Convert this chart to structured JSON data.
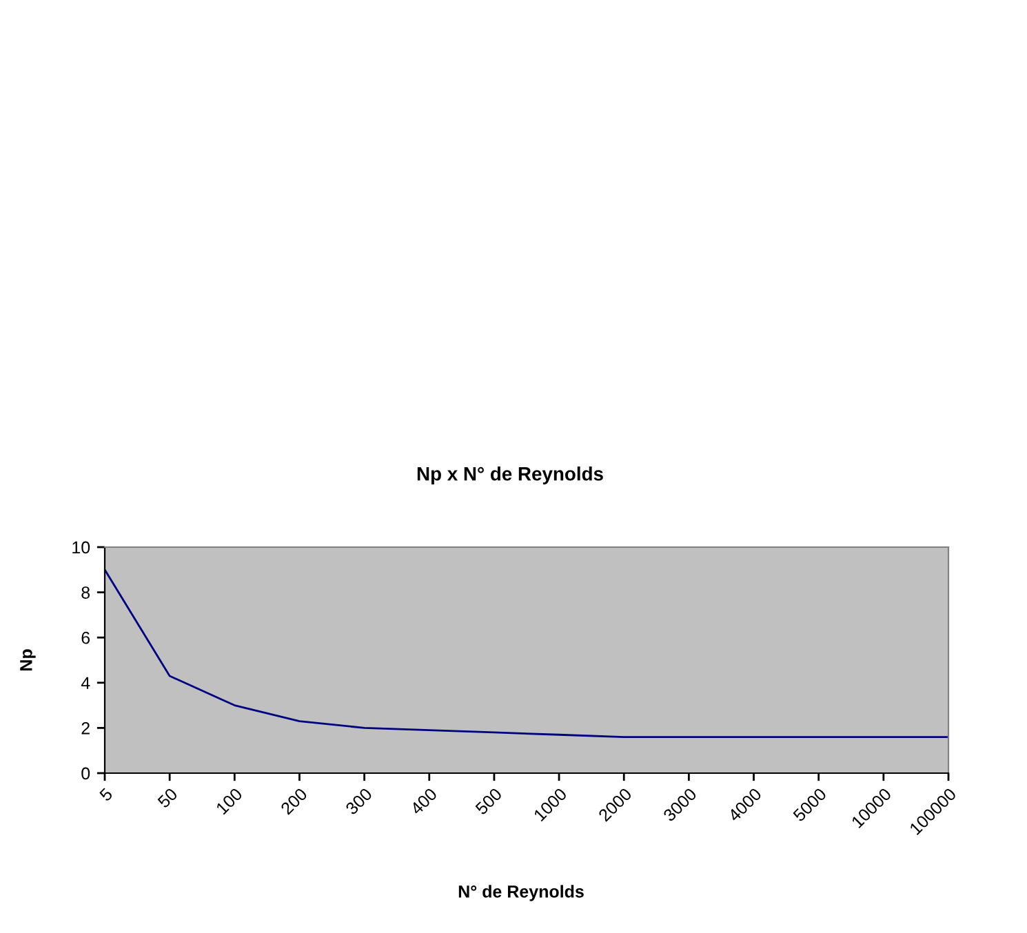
{
  "chart_data": {
    "type": "line",
    "title": "Np x N° de Reynolds",
    "xlabel": "N° de Reynolds",
    "ylabel": "Np",
    "categories": [
      "5",
      "50",
      "100",
      "200",
      "300",
      "400",
      "500",
      "1000",
      "2000",
      "3000",
      "4000",
      "5000",
      "10000",
      "100000"
    ],
    "series": [
      {
        "color": "#000080",
        "values": [
          9,
          4.3,
          3.0,
          2.3,
          2.0,
          1.9,
          1.8,
          1.7,
          1.6,
          1.6,
          1.6,
          1.6,
          1.6,
          1.6
        ]
      }
    ],
    "ylim": [
      0,
      10
    ],
    "yticks": [
      0,
      2,
      4,
      6,
      8,
      10
    ],
    "grid": false,
    "legend": false,
    "marker": "none",
    "line_style": "solid"
  }
}
